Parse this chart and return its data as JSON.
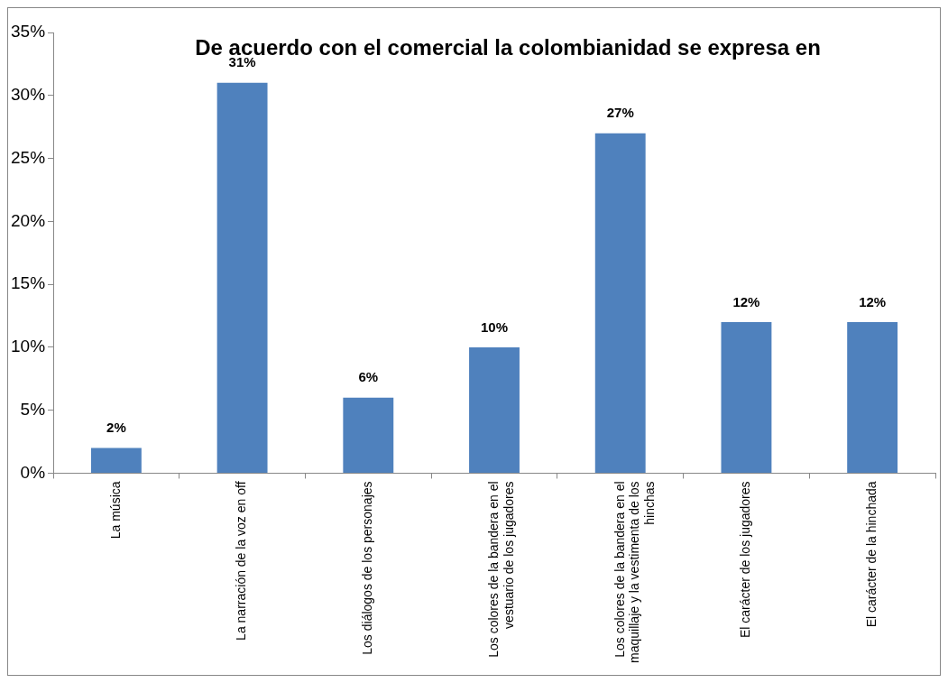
{
  "chart_data": {
    "type": "bar",
    "title": "De acuerdo con el comercial la colombianidad se expresa en",
    "categories": [
      "La música",
      "La narración de la voz en off",
      "Los diálogos de los personajes",
      "Los colores de la bandera en el vestuario de los jugadores",
      "Los colores de la bandera en el maquillaje y la vestimenta de los hinchas",
      "El carácter de los jugadores",
      "El carácter de la hinchada"
    ],
    "values": [
      2,
      31,
      6,
      10,
      27,
      12,
      12
    ],
    "value_labels": [
      "2%",
      "31%",
      "6%",
      "10%",
      "27%",
      "12%",
      "12%"
    ],
    "color": "#4f81bd",
    "ylim": [
      0,
      35
    ],
    "yticks": [
      {
        "value": 0,
        "label": "0%"
      },
      {
        "value": 5,
        "label": "5%"
      },
      {
        "value": 10,
        "label": "10%"
      },
      {
        "value": 15,
        "label": "15%"
      },
      {
        "value": 20,
        "label": "20%"
      },
      {
        "value": 25,
        "label": "25%"
      },
      {
        "value": 30,
        "label": "30%"
      },
      {
        "value": 35,
        "label": "35%"
      }
    ],
    "grid": false,
    "legend": false
  }
}
